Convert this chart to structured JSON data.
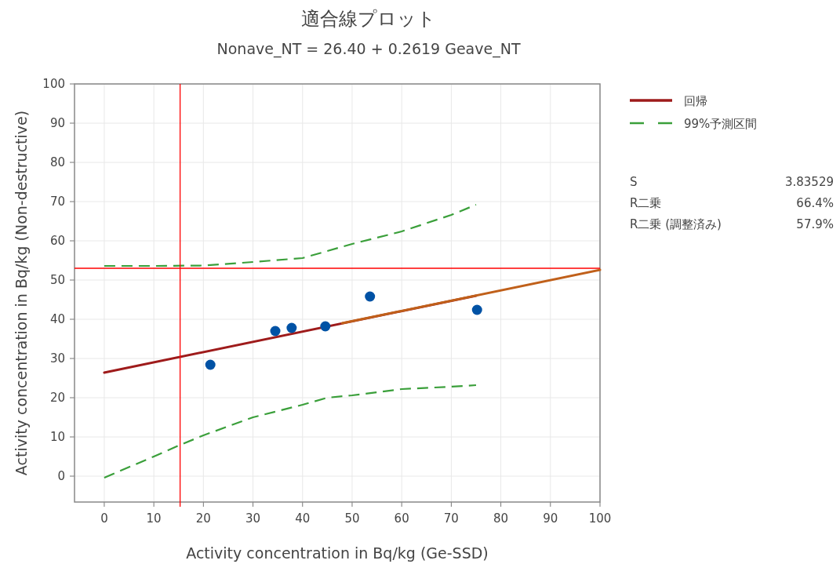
{
  "chart_data": {
    "type": "line",
    "title": "適合線プロット",
    "subtitle": "Nonave_NT = 26.40 + 0.2619 Geave_NT",
    "xlabel": "Activity concentration in Bq/kg (Ge-SSD)",
    "ylabel": "Activity concentration in Bq/kg (Non-destructive)",
    "xlim": [
      -6,
      100
    ],
    "ylim": [
      -6.6,
      100
    ],
    "xticks": [
      0,
      10,
      20,
      30,
      40,
      50,
      60,
      70,
      80,
      90,
      100
    ],
    "yticks": [
      0,
      10,
      20,
      30,
      40,
      50,
      60,
      70,
      80,
      90,
      100
    ],
    "grid": true,
    "legend": "top right",
    "series": [
      {
        "name": "回帰",
        "color": "#9e1b1b",
        "x": [
          0,
          75
        ],
        "values": [
          26.4,
          46.0
        ]
      },
      {
        "type": "line",
        "color": "#c0601a",
        "x": [
          48,
          100
        ],
        "values": [
          39.0,
          52.6
        ]
      },
      {
        "name": "99%予測区間",
        "type": "line",
        "line_style": "dashed",
        "color": "#3a9f3a",
        "x": [
          0,
          10,
          20,
          30,
          40,
          50,
          60,
          70,
          75
        ],
        "values": [
          53.6,
          53.6,
          53.7,
          54.6,
          55.6,
          59.2,
          62.4,
          66.6,
          69.2
        ]
      },
      {
        "type": "line",
        "line_style": "dashed",
        "color": "#3a9f3a",
        "x": [
          0,
          10,
          15,
          20,
          30,
          40,
          45,
          50,
          55,
          60,
          70,
          75
        ],
        "values": [
          -0.4,
          5.0,
          7.8,
          10.4,
          15.0,
          18.2,
          20.0,
          20.6,
          21.4,
          22.2,
          22.8,
          23.2
        ]
      },
      {
        "type": "scatter",
        "marker": "circle",
        "color": "#0052a5",
        "x": [
          21.4,
          34.5,
          37.8,
          44.6,
          53.6,
          75.2
        ],
        "values": [
          28.4,
          37.0,
          37.8,
          38.2,
          45.8,
          42.4
        ]
      }
    ],
    "ref_lines": [
      {
        "axis": "x",
        "value": 15.3,
        "color": "#ff0000"
      },
      {
        "axis": "y",
        "value": 53.0,
        "color": "#ff0000"
      }
    ],
    "annotations": [
      "S",
      "3.83529",
      "R二乗",
      "66.4%",
      "R二乗 (調整済み)",
      "57.9%"
    ]
  }
}
